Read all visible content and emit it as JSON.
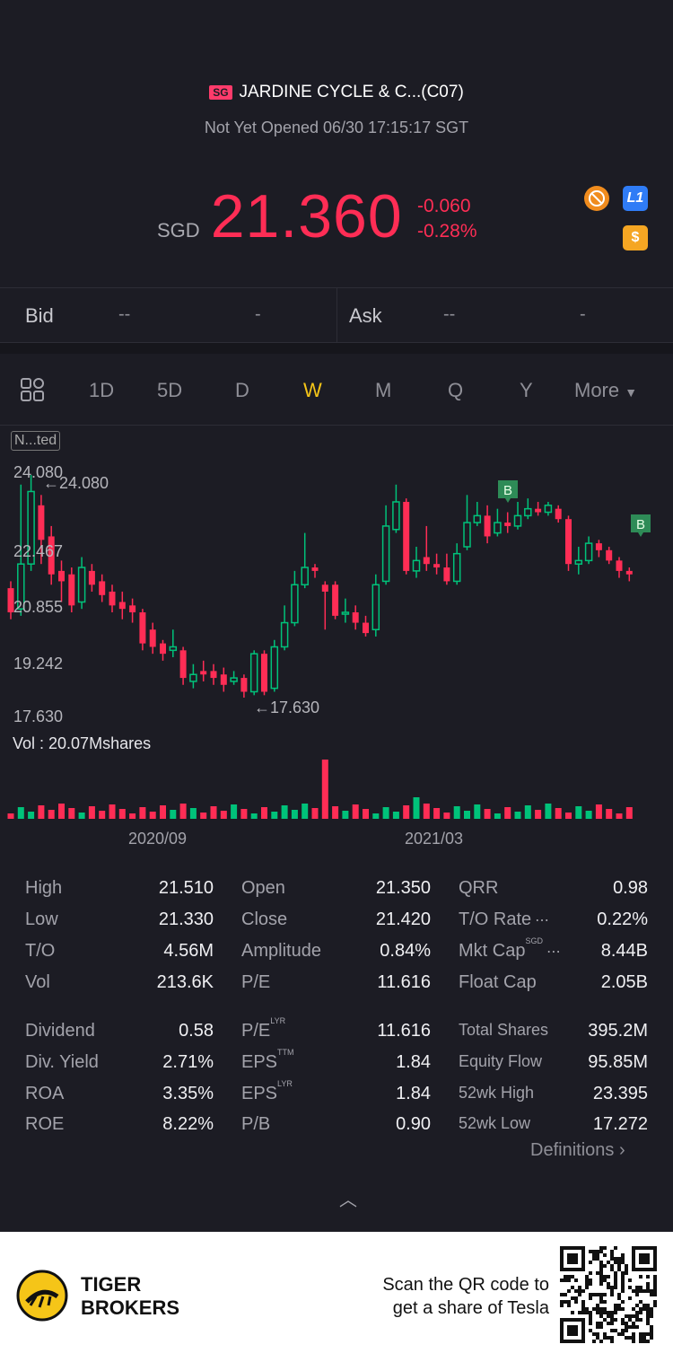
{
  "header": {
    "market_badge": "SG",
    "title": "JARDINE CYCLE & C...(C07)",
    "status": "Not Yet Opened 06/30 17:15:17 SGT",
    "currency": "SGD",
    "price": "21.360",
    "change": "-0.060",
    "change_pct": "-0.28%",
    "colors": {
      "down": "#ff2d55",
      "up": "#00c27a",
      "accent": "#f5c518"
    }
  },
  "quote": {
    "bid_label": "Bid",
    "bid_price": "--",
    "bid_size": "-",
    "ask_label": "Ask",
    "ask_price": "--",
    "ask_size": "-"
  },
  "tabs": {
    "items": [
      "1D",
      "5D",
      "D",
      "W",
      "M",
      "Q",
      "Y"
    ],
    "active": "W",
    "more": "More"
  },
  "chart": {
    "badge": "N...ted",
    "y_ticks": [
      "24.080",
      "22.467",
      "20.855",
      "19.242",
      "17.630"
    ],
    "high_marker": "24.080",
    "low_marker": "17.630",
    "volume_label": "Vol  : 20.07Mshares",
    "x_ticks": [
      "2020/09",
      "2021/03"
    ],
    "buy_marker": "B"
  },
  "stats": {
    "col1": [
      {
        "label": "High",
        "value": "21.510"
      },
      {
        "label": "Low",
        "value": "21.330"
      },
      {
        "label": "T/O",
        "value": "4.56M"
      },
      {
        "label": "Vol",
        "value": "213.6K"
      },
      {
        "label": "Dividend",
        "value": "0.58"
      },
      {
        "label": "Div. Yield",
        "value": "2.71%"
      },
      {
        "label": "ROA",
        "value": "3.35%"
      },
      {
        "label": "ROE",
        "value": "8.22%"
      }
    ],
    "col2": [
      {
        "label": "Open",
        "value": "21.350"
      },
      {
        "label": "Close",
        "value": "21.420"
      },
      {
        "label": "Amplitude",
        "value": "0.84%"
      },
      {
        "label": "P/E",
        "value": "11.616"
      },
      {
        "label": "P/E",
        "sup": "LYR",
        "value": "11.616"
      },
      {
        "label": "EPS",
        "sup": "TTM",
        "value": "1.84"
      },
      {
        "label": "EPS",
        "sup": "LYR",
        "value": "1.84"
      },
      {
        "label": "P/B",
        "value": "0.90"
      }
    ],
    "col3": [
      {
        "label": "QRR",
        "value": "0.98"
      },
      {
        "label": "T/O Rate",
        "value": "0.22%"
      },
      {
        "label": "Mkt Cap",
        "sup": "SGD",
        "value": "8.44B"
      },
      {
        "label": "Float Cap",
        "value": "2.05B"
      },
      {
        "label": "Total Shares",
        "value": "395.2M"
      },
      {
        "label": "Equity Flow",
        "value": "95.85M"
      },
      {
        "label": "52wk High",
        "value": "23.395"
      },
      {
        "label": "52wk Low",
        "value": "17.272"
      }
    ],
    "definitions": "Definitions"
  },
  "footer": {
    "brand_line1": "TIGER",
    "brand_line2": "BROKERS",
    "scan_line1": "Scan the QR code to",
    "scan_line2": "get a share of Tesla"
  }
}
